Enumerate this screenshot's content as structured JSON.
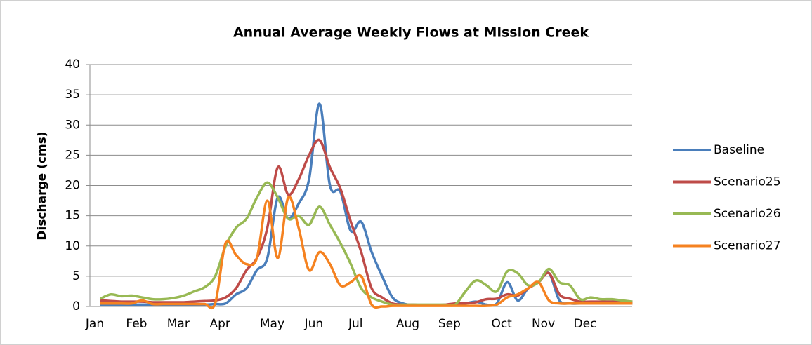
{
  "chart_data": {
    "type": "line",
    "title": "Annual Average Weekly Flows at Mission Creek",
    "ylabel": "Discharge (cms)",
    "categories": [
      "Jan",
      null,
      null,
      null,
      "Feb",
      null,
      null,
      null,
      "Mar",
      null,
      null,
      null,
      "Apr",
      null,
      null,
      null,
      null,
      "May",
      null,
      null,
      null,
      "Jun",
      null,
      null,
      null,
      "Jul",
      null,
      null,
      null,
      null,
      "Aug",
      null,
      null,
      null,
      "Sep",
      null,
      null,
      null,
      null,
      "Oct",
      null,
      null,
      null,
      "Nov",
      null,
      null,
      null,
      "Dec",
      null,
      null,
      null,
      null
    ],
    "series": [
      {
        "name": "Baseline",
        "color": "#4a7ebb",
        "values": [
          0.3,
          0.3,
          0.3,
          0.3,
          0.3,
          0.3,
          0.3,
          0.3,
          0.3,
          0.3,
          0.3,
          0.4,
          0.5,
          2,
          3,
          6,
          8,
          18,
          14.5,
          17,
          21,
          33.5,
          20,
          19,
          12.5,
          14,
          9,
          5,
          1.5,
          0.5,
          0.2,
          0.2,
          0.2,
          0.2,
          0.3,
          0.5,
          0.8,
          0.3,
          0.5,
          4,
          1,
          3,
          4,
          5.5,
          1,
          0.5,
          0.5,
          0.5,
          0.5,
          0.5,
          0.5,
          0.5
        ]
      },
      {
        "name": "Scenario25",
        "color": "#be4b48",
        "values": [
          1,
          0.9,
          0.8,
          0.8,
          0.8,
          0.7,
          0.7,
          0.7,
          0.7,
          0.8,
          0.9,
          1,
          1.5,
          3,
          6,
          8,
          13,
          23,
          18.5,
          21,
          25,
          27.5,
          23,
          19.5,
          14,
          9,
          3,
          1.5,
          0.5,
          0.3,
          0.3,
          0.2,
          0.2,
          0.3,
          0.5,
          0.5,
          0.7,
          1.2,
          1.3,
          2,
          1.8,
          3,
          4,
          5.5,
          2,
          1.3,
          0.8,
          0.8,
          0.8,
          0.8,
          0.8,
          0.8
        ]
      },
      {
        "name": "Scenario26",
        "color": "#98b954",
        "values": [
          1.3,
          2,
          1.7,
          1.8,
          1.5,
          1.2,
          1.2,
          1.4,
          1.8,
          2.5,
          3.2,
          5,
          10,
          13,
          14.5,
          18,
          20.5,
          18,
          14.5,
          15,
          13.5,
          16.5,
          13.5,
          10.5,
          7,
          3,
          1.5,
          0.8,
          0.3,
          0.3,
          0.3,
          0.3,
          0.3,
          0.3,
          0.3,
          2.5,
          4.3,
          3.5,
          2.5,
          5.8,
          5.5,
          3.5,
          4,
          6.2,
          4,
          3.5,
          1.2,
          1.5,
          1.2,
          1.2,
          1,
          0.8
        ]
      },
      {
        "name": "Scenario27",
        "color": "#f58220",
        "values": [
          0.5,
          0.5,
          0.5,
          0.5,
          1,
          0.4,
          0.4,
          0.4,
          0.4,
          0.4,
          0.4,
          0.5,
          10.5,
          8.5,
          7,
          8,
          17.5,
          8,
          18,
          13,
          6,
          9,
          7,
          3.5,
          4,
          5,
          0.3,
          0,
          0.1,
          0.1,
          0.1,
          0.1,
          0.1,
          0.1,
          0.1,
          0.1,
          0.1,
          0.1,
          0.3,
          1.5,
          2,
          3,
          4,
          1,
          0.5,
          0.5,
          0.5,
          0.5,
          0.5,
          0.5,
          0.5,
          0.5
        ]
      }
    ],
    "ylim": [
      0,
      40
    ],
    "yticks": [
      0,
      5,
      10,
      15,
      20,
      25,
      30,
      35,
      40
    ],
    "grid": true,
    "legend": "right"
  }
}
